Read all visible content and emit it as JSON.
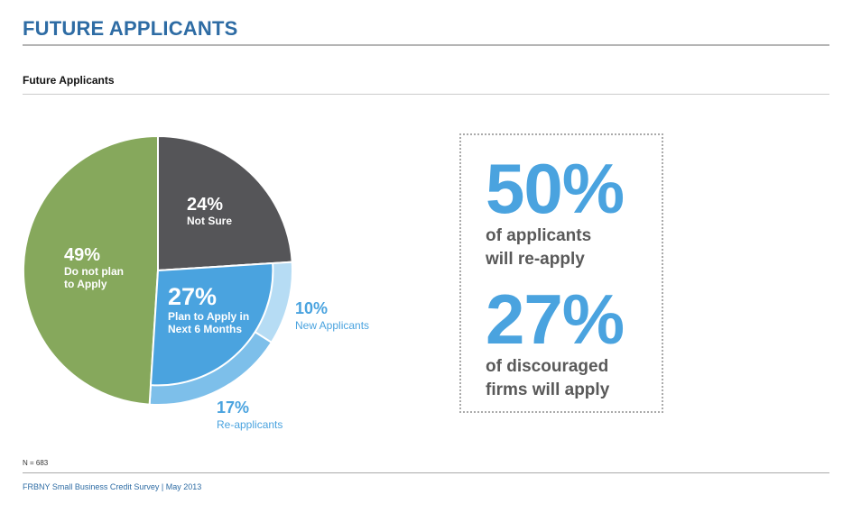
{
  "header": {
    "title": "FUTURE APPLICANTS"
  },
  "chart_data": {
    "type": "pie",
    "title": "Future Applicants",
    "slices": [
      {
        "pct_label": "24%",
        "label": "Not Sure",
        "value": 24,
        "color": "#555558"
      },
      {
        "pct_label": "10%",
        "label": "New Applicants",
        "value": 10,
        "color": "#b6dcf4"
      },
      {
        "pct_label": "17%",
        "label": "Re-applicants",
        "value": 17,
        "color": "#7dbfea"
      },
      {
        "pct_label": "49%",
        "label": "Do not plan\nto Apply",
        "value": 49,
        "color": "#86a85c"
      }
    ],
    "group": {
      "pct_label": "27%",
      "label": "Plan to Apply in\nNext 6 Months",
      "value": 27,
      "color": "#4aa3df"
    }
  },
  "stats": [
    {
      "value": "50%",
      "text": "of applicants\nwill re-apply"
    },
    {
      "value": "27%",
      "text": "of discouraged\nfirms will apply"
    }
  ],
  "footnote": "N = 683",
  "footer": "FRBNY Small Business Credit Survey  |  May 2013"
}
